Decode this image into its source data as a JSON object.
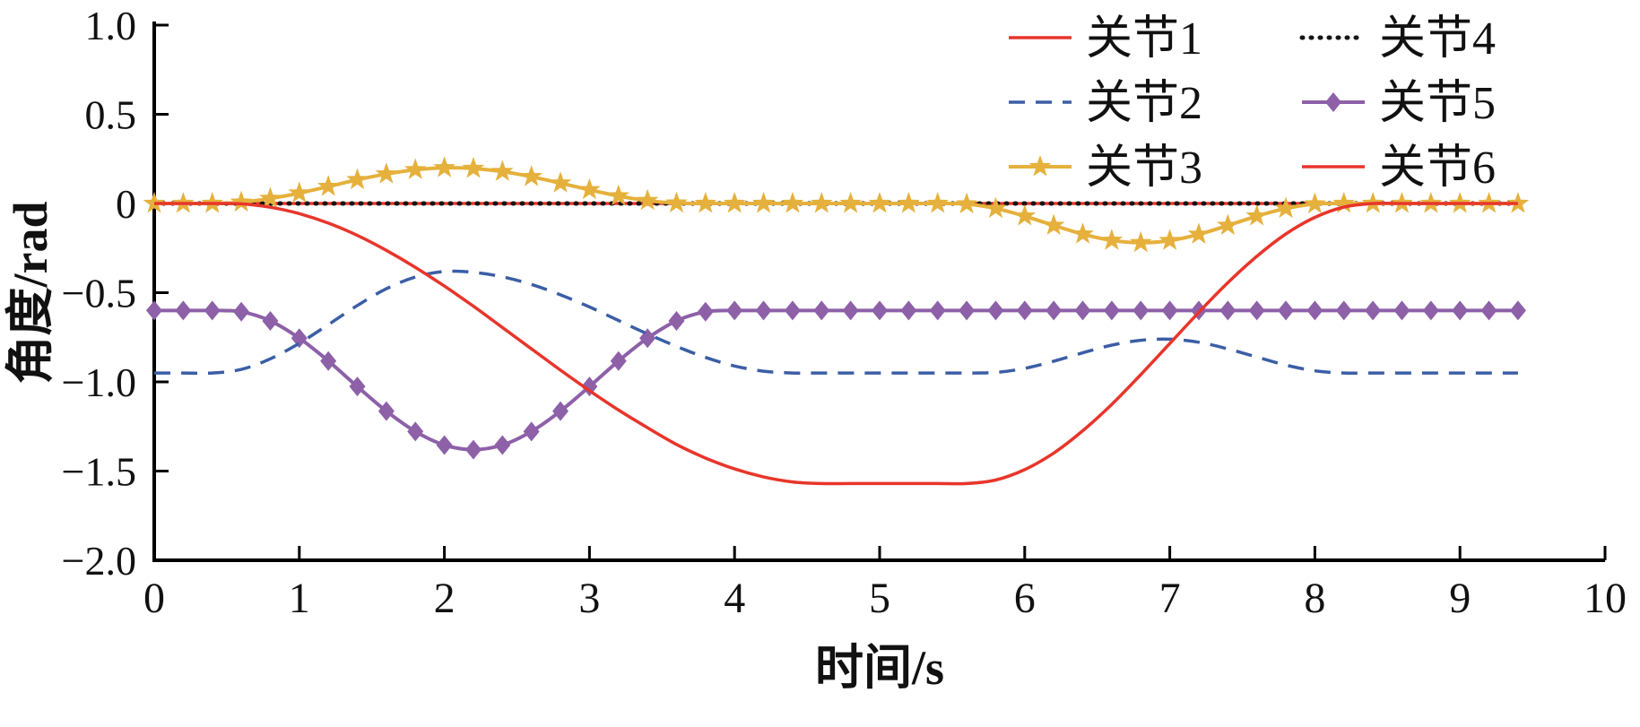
{
  "figure": {
    "background": "#ffffff",
    "description": "Joint angle trajectories plot"
  },
  "chart_data": {
    "type": "line",
    "title": "",
    "xlabel": "时间/s",
    "ylabel": "角度/rad",
    "xlim": [
      0,
      10
    ],
    "ylim": [
      -2.0,
      1.0
    ],
    "grid": false,
    "legend_position": "top-right-inside",
    "legend_columns": 2,
    "x_ticks": [
      0,
      1,
      2,
      3,
      4,
      5,
      6,
      7,
      8,
      9,
      10
    ],
    "x_tick_labels": [
      "0",
      "1",
      "2",
      "3",
      "4",
      "5",
      "6",
      "7",
      "8",
      "9",
      "10"
    ],
    "y_ticks": [
      1.0,
      0.5,
      0,
      -0.5,
      -1.0,
      -1.5,
      -2.0
    ],
    "y_tick_labels": [
      "1.0",
      "0.5",
      "0",
      "−0.5",
      "−1.0",
      "−1.5",
      "−2.0"
    ],
    "x": [
      0,
      0.2,
      0.4,
      0.6,
      0.8,
      1,
      1.2,
      1.4,
      1.6,
      1.8,
      2,
      2.2,
      2.4,
      2.6,
      2.8,
      3,
      3.2,
      3.4,
      3.6,
      3.8,
      4,
      4.2,
      4.4,
      4.6,
      4.8,
      5,
      5.2,
      5.4,
      5.6,
      5.8,
      6,
      6.2,
      6.4,
      6.6,
      6.8,
      7,
      7.2,
      7.4,
      7.6,
      7.8,
      8,
      8.2,
      8.4,
      8.6,
      8.8,
      9,
      9.2,
      9.4
    ],
    "series": [
      {
        "id": "joint-1",
        "name": "关节1",
        "color": "#e8352b",
        "style": "solid",
        "marker": "none",
        "width": 3.5,
        "values": [
          0,
          0,
          0,
          -0.002,
          -0.021,
          -0.057,
          -0.11,
          -0.179,
          -0.263,
          -0.358,
          -0.463,
          -0.576,
          -0.695,
          -0.815,
          -0.934,
          -1.049,
          -1.158,
          -1.257,
          -1.351,
          -1.427,
          -1.488,
          -1.533,
          -1.561,
          -1.57,
          -1.57,
          -1.57,
          -1.57,
          -1.57,
          -1.57,
          -1.55,
          -1.492,
          -1.399,
          -1.274,
          -1.126,
          -0.96,
          -0.785,
          -0.61,
          -0.444,
          -0.296,
          -0.171,
          -0.078,
          -0.02,
          0,
          0,
          0,
          0,
          0,
          0
        ]
      },
      {
        "id": "joint-2",
        "name": "关节2",
        "color": "#3b5ea5",
        "style": "dashed",
        "marker": "none",
        "width": 3.5,
        "values": [
          -0.95,
          -0.95,
          -0.95,
          -0.93,
          -0.871,
          -0.784,
          -0.679,
          -0.572,
          -0.478,
          -0.412,
          -0.381,
          -0.386,
          -0.411,
          -0.454,
          -0.512,
          -0.58,
          -0.656,
          -0.731,
          -0.801,
          -0.863,
          -0.911,
          -0.94,
          -0.95,
          -0.95,
          -0.95,
          -0.95,
          -0.95,
          -0.95,
          -0.95,
          -0.947,
          -0.924,
          -0.884,
          -0.837,
          -0.794,
          -0.767,
          -0.761,
          -0.778,
          -0.815,
          -0.861,
          -0.906,
          -0.938,
          -0.95,
          -0.95,
          -0.95,
          -0.95,
          -0.95,
          -0.95,
          -0.95
        ]
      },
      {
        "id": "joint-3",
        "name": "关节3",
        "color": "#e5b13c",
        "style": "solid",
        "marker": "star",
        "width": 4,
        "values": [
          0,
          0,
          0,
          0.007,
          0.028,
          0.058,
          0.095,
          0.133,
          0.165,
          0.189,
          0.2,
          0.196,
          0.179,
          0.15,
          0.114,
          0.077,
          0.042,
          0.016,
          0.002,
          0,
          0,
          0,
          0,
          0,
          0,
          0,
          0,
          0,
          -0.003,
          -0.028,
          -0.071,
          -0.123,
          -0.172,
          -0.207,
          -0.22,
          -0.208,
          -0.173,
          -0.123,
          -0.071,
          -0.028,
          -0.003,
          0,
          0,
          0,
          0,
          0,
          0,
          0
        ]
      },
      {
        "id": "joint-4",
        "name": "关节4",
        "color": "#141414",
        "style": "dotted",
        "marker": "none",
        "width": 5,
        "values": [
          0,
          0,
          0,
          0,
          0,
          0,
          0,
          0,
          0,
          0,
          0,
          0,
          0,
          0,
          0,
          0,
          0,
          0,
          0,
          0,
          0,
          0,
          0,
          0,
          0,
          0,
          0,
          0,
          0,
          0,
          0,
          0,
          0,
          0,
          0,
          0,
          0,
          0,
          0,
          0,
          0,
          0,
          0,
          0,
          0,
          0,
          0,
          0
        ]
      },
      {
        "id": "joint-5",
        "name": "关节5",
        "color": "#8d60a8",
        "style": "solid",
        "marker": "diamond",
        "width": 4,
        "values": [
          -0.6,
          -0.6,
          -0.6,
          -0.607,
          -0.658,
          -0.755,
          -0.883,
          -1.026,
          -1.164,
          -1.278,
          -1.354,
          -1.38,
          -1.354,
          -1.278,
          -1.164,
          -1.026,
          -0.883,
          -0.755,
          -0.658,
          -0.607,
          -0.6,
          -0.6,
          -0.6,
          -0.6,
          -0.6,
          -0.6,
          -0.6,
          -0.6,
          -0.6,
          -0.6,
          -0.6,
          -0.6,
          -0.6,
          -0.6,
          -0.6,
          -0.6,
          -0.6,
          -0.6,
          -0.6,
          -0.6,
          -0.6,
          -0.6,
          -0.6,
          -0.6,
          -0.6,
          -0.6,
          -0.6,
          -0.6
        ]
      },
      {
        "id": "joint-6",
        "name": "关节6",
        "color": "#e8352b",
        "style": "solid",
        "marker": "none",
        "width": 3.5,
        "values": [
          0,
          0,
          0,
          0,
          0,
          0,
          0,
          0,
          0,
          0,
          0,
          0,
          0,
          0,
          0,
          0,
          0,
          0,
          0,
          0,
          0,
          0,
          0,
          0,
          0,
          0,
          0,
          0,
          0,
          0,
          0,
          0,
          0,
          0,
          0,
          0,
          0,
          0,
          0,
          0,
          0,
          0,
          0,
          0,
          0,
          0,
          0,
          0
        ]
      }
    ]
  }
}
